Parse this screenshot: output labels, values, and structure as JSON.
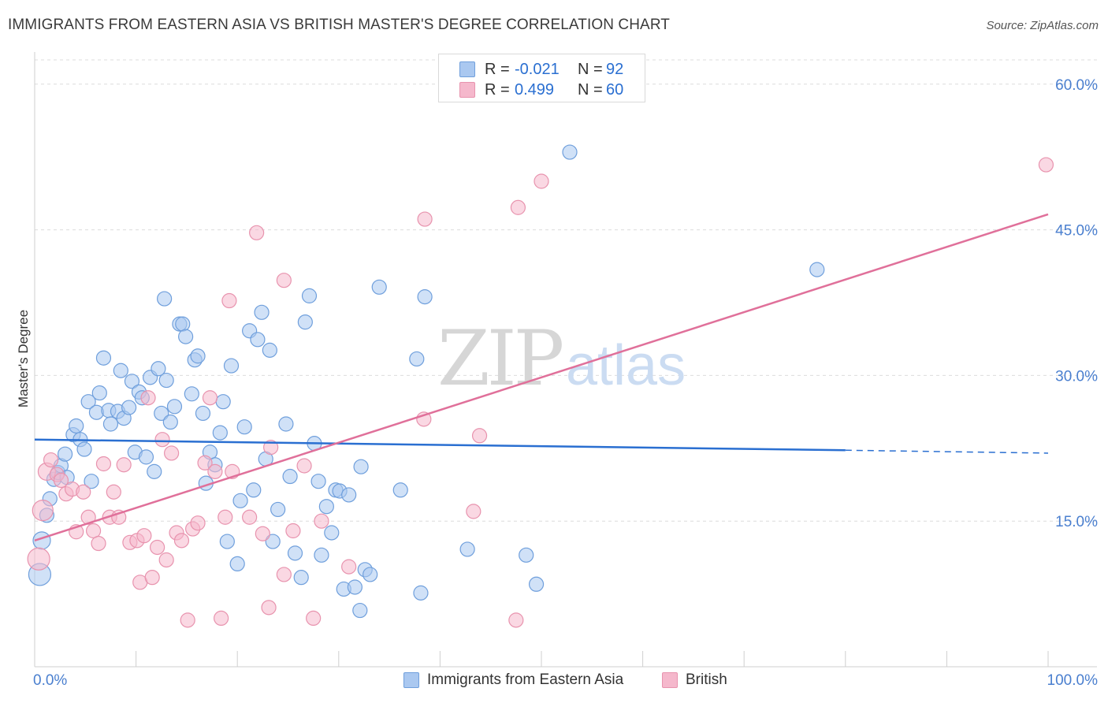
{
  "title": "IMMIGRANTS FROM EASTERN ASIA VS BRITISH MASTER'S DEGREE CORRELATION CHART",
  "source": "Source: ZipAtlas.com",
  "watermark": {
    "zip": "ZIP",
    "atlas": "atlas"
  },
  "colors": {
    "blue_fill": "#aac8f0",
    "blue_stroke": "#6f9fdc",
    "blue_line": "#2a6fd1",
    "pink_fill": "#f5b8cc",
    "pink_stroke": "#e893ae",
    "pink_line": "#e0709a",
    "axis_text": "#4a7fcf",
    "grid": "#dcdcdc"
  },
  "stats": [
    {
      "r_label": "R =",
      "r_value": "-0.021",
      "n_label": "N =",
      "n_value": "92"
    },
    {
      "r_label": "R =",
      "r_value": "0.499",
      "n_label": "N =",
      "n_value": "60"
    }
  ],
  "legend": [
    {
      "label": "Immigrants from Eastern Asia"
    },
    {
      "label": "British"
    }
  ],
  "chart_data": {
    "type": "scatter",
    "title": "IMMIGRANTS FROM EASTERN ASIA VS BRITISH MASTER'S DEGREE CORRELATION CHART",
    "xlabel": "",
    "ylabel": "Master's Degree",
    "x_tick_labels": [
      "0.0%",
      "100.0%"
    ],
    "y_tick_labels": [
      "15.0%",
      "30.0%",
      "45.0%",
      "60.0%"
    ],
    "y_ticks": [
      15,
      30,
      45,
      60
    ],
    "xlim": [
      0,
      100
    ],
    "ylim": [
      0,
      62.5
    ],
    "grid": true,
    "legend_position": "bottom",
    "series": [
      {
        "name": "Immigrants from Eastern Asia",
        "color": "#aac8f0",
        "trend": {
          "x": [
            0,
            80
          ],
          "y": [
            23.4,
            22.3
          ],
          "dashed_to": [
            100,
            22.0
          ]
        },
        "points": [
          [
            0.5,
            9.5,
            14
          ],
          [
            0.7,
            13.0,
            11
          ],
          [
            1.2,
            15.6,
            9
          ],
          [
            1.5,
            17.3,
            9
          ],
          [
            1.9,
            19.3,
            9
          ],
          [
            2.3,
            20.0,
            9
          ],
          [
            2.6,
            20.7,
            9
          ],
          [
            3.2,
            19.5,
            9
          ],
          [
            3.0,
            21.9,
            9
          ],
          [
            3.8,
            23.9,
            9
          ],
          [
            4.1,
            24.8,
            9
          ],
          [
            4.5,
            23.4,
            9
          ],
          [
            4.9,
            22.4,
            9
          ],
          [
            5.6,
            19.1,
            9
          ],
          [
            5.3,
            27.3,
            9
          ],
          [
            6.1,
            26.2,
            9
          ],
          [
            6.4,
            28.2,
            9
          ],
          [
            6.8,
            31.8,
            9
          ],
          [
            7.3,
            26.4,
            9
          ],
          [
            7.5,
            25.0,
            9
          ],
          [
            8.2,
            26.3,
            9
          ],
          [
            8.5,
            30.5,
            9
          ],
          [
            8.8,
            25.6,
            9
          ],
          [
            9.3,
            26.7,
            9
          ],
          [
            9.6,
            29.4,
            9
          ],
          [
            9.9,
            22.1,
            9
          ],
          [
            10.3,
            28.3,
            9
          ],
          [
            10.6,
            27.7,
            9
          ],
          [
            11.0,
            21.6,
            9
          ],
          [
            11.4,
            29.8,
            9
          ],
          [
            11.8,
            20.1,
            9
          ],
          [
            12.2,
            30.7,
            9
          ],
          [
            12.5,
            26.1,
            9
          ],
          [
            13.0,
            29.5,
            9
          ],
          [
            12.8,
            37.9,
            9
          ],
          [
            13.4,
            25.2,
            9
          ],
          [
            13.8,
            26.8,
            9
          ],
          [
            14.3,
            35.3,
            9
          ],
          [
            14.6,
            35.3,
            9
          ],
          [
            14.9,
            34.0,
            9
          ],
          [
            15.5,
            28.1,
            9
          ],
          [
            15.8,
            31.6,
            9
          ],
          [
            16.1,
            32.0,
            9
          ],
          [
            16.6,
            26.1,
            9
          ],
          [
            16.9,
            18.9,
            9
          ],
          [
            17.3,
            22.1,
            9
          ],
          [
            17.8,
            20.8,
            9
          ],
          [
            18.3,
            24.1,
            9
          ],
          [
            18.6,
            27.3,
            9
          ],
          [
            19.0,
            12.9,
            9
          ],
          [
            19.4,
            31.0,
            9
          ],
          [
            20.0,
            10.6,
            9
          ],
          [
            20.3,
            17.1,
            9
          ],
          [
            20.7,
            24.7,
            9
          ],
          [
            21.2,
            34.6,
            9
          ],
          [
            21.6,
            18.2,
            9
          ],
          [
            22.0,
            33.7,
            9
          ],
          [
            22.4,
            36.5,
            9
          ],
          [
            22.8,
            21.4,
            9
          ],
          [
            23.2,
            32.6,
            9
          ],
          [
            23.5,
            12.9,
            9
          ],
          [
            24.0,
            16.2,
            9
          ],
          [
            24.8,
            25.0,
            9
          ],
          [
            25.2,
            19.6,
            9
          ],
          [
            25.7,
            11.7,
            9
          ],
          [
            26.3,
            9.2,
            9
          ],
          [
            26.7,
            35.5,
            9
          ],
          [
            27.1,
            38.2,
            9
          ],
          [
            27.6,
            23.0,
            9
          ],
          [
            28.0,
            19.1,
            9
          ],
          [
            28.3,
            11.5,
            9
          ],
          [
            28.8,
            16.5,
            9
          ],
          [
            29.3,
            13.8,
            9
          ],
          [
            29.7,
            18.2,
            9
          ],
          [
            30.1,
            18.1,
            9
          ],
          [
            30.5,
            8.0,
            9
          ],
          [
            31.0,
            17.7,
            9
          ],
          [
            31.6,
            8.2,
            9
          ],
          [
            32.2,
            20.6,
            9
          ],
          [
            32.1,
            5.8,
            9
          ],
          [
            32.6,
            10.0,
            9
          ],
          [
            33.1,
            9.5,
            9
          ],
          [
            34.0,
            39.1,
            9
          ],
          [
            36.1,
            18.2,
            9
          ],
          [
            37.7,
            31.7,
            9
          ],
          [
            38.1,
            7.6,
            9
          ],
          [
            38.5,
            38.1,
            9
          ],
          [
            42.7,
            12.1,
            9
          ],
          [
            48.5,
            11.5,
            9
          ],
          [
            49.5,
            8.5,
            9
          ],
          [
            52.8,
            53.0,
            9
          ],
          [
            77.2,
            40.9,
            9
          ]
        ]
      },
      {
        "name": "British",
        "color": "#f5b8cc",
        "trend": {
          "x": [
            0,
            100
          ],
          "y": [
            13.0,
            46.6
          ]
        },
        "points": [
          [
            0.4,
            11.1,
            14
          ],
          [
            0.8,
            16.1,
            13
          ],
          [
            1.2,
            20.1,
            11
          ],
          [
            1.6,
            21.3,
            9
          ],
          [
            2.2,
            19.8,
            9
          ],
          [
            2.6,
            19.2,
            9
          ],
          [
            3.1,
            17.8,
            9
          ],
          [
            3.7,
            18.3,
            9
          ],
          [
            4.1,
            13.9,
            9
          ],
          [
            4.8,
            18.0,
            9
          ],
          [
            5.3,
            15.4,
            9
          ],
          [
            5.8,
            14.0,
            9
          ],
          [
            6.3,
            12.7,
            9
          ],
          [
            6.8,
            20.9,
            9
          ],
          [
            7.4,
            15.4,
            9
          ],
          [
            7.8,
            18.0,
            9
          ],
          [
            8.3,
            15.4,
            9
          ],
          [
            8.8,
            20.8,
            9
          ],
          [
            9.4,
            12.8,
            9
          ],
          [
            10.1,
            13.0,
            9
          ],
          [
            10.4,
            8.7,
            9
          ],
          [
            10.8,
            13.5,
            9
          ],
          [
            11.2,
            27.7,
            9
          ],
          [
            11.6,
            9.2,
            9
          ],
          [
            12.1,
            12.3,
            9
          ],
          [
            12.6,
            23.4,
            9
          ],
          [
            13.0,
            11.0,
            9
          ],
          [
            13.5,
            22.0,
            9
          ],
          [
            14.0,
            13.8,
            9
          ],
          [
            14.5,
            13.0,
            9
          ],
          [
            15.1,
            4.8,
            9
          ],
          [
            15.6,
            14.2,
            9
          ],
          [
            16.1,
            14.8,
            9
          ],
          [
            16.8,
            21.0,
            9
          ],
          [
            17.3,
            27.7,
            9
          ],
          [
            17.8,
            20.1,
            9
          ],
          [
            18.4,
            5.0,
            9
          ],
          [
            18.8,
            15.4,
            9
          ],
          [
            19.2,
            37.7,
            9
          ],
          [
            19.5,
            20.1,
            9
          ],
          [
            21.2,
            15.4,
            9
          ],
          [
            21.9,
            44.7,
            9
          ],
          [
            22.5,
            13.7,
            9
          ],
          [
            23.1,
            6.1,
            9
          ],
          [
            23.3,
            22.6,
            9
          ],
          [
            24.6,
            9.5,
            9
          ],
          [
            24.6,
            39.8,
            9
          ],
          [
            25.5,
            14.0,
            9
          ],
          [
            26.6,
            20.7,
            9
          ],
          [
            27.5,
            5.0,
            9
          ],
          [
            28.3,
            15.0,
            9
          ],
          [
            31.0,
            10.3,
            9
          ],
          [
            38.4,
            25.5,
            9
          ],
          [
            38.5,
            46.1,
            9
          ],
          [
            43.3,
            16.0,
            9
          ],
          [
            43.9,
            23.8,
            9
          ],
          [
            47.5,
            4.8,
            9
          ],
          [
            47.7,
            47.3,
            9
          ],
          [
            50.0,
            50.0,
            9
          ],
          [
            99.8,
            51.7,
            9
          ]
        ]
      }
    ]
  }
}
